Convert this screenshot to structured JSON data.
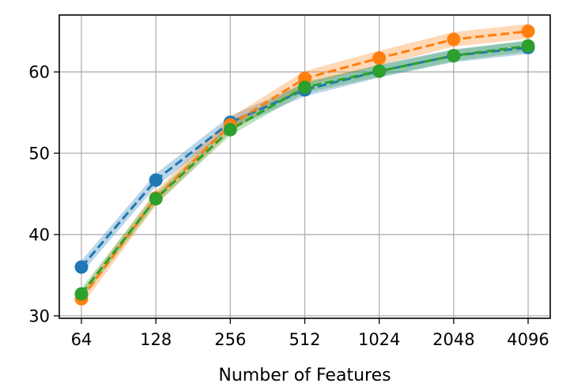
{
  "chart_data": {
    "type": "line",
    "title": "",
    "xlabel": "Number of Features",
    "ylabel": "",
    "x": [
      "64",
      "128",
      "256",
      "512",
      "1024",
      "2048",
      "4096"
    ],
    "ylim": [
      29.7,
      67
    ],
    "yticks": [
      30,
      40,
      50,
      60
    ],
    "grid": true,
    "legend": "none",
    "series": [
      {
        "color": "#1f77b4",
        "values": [
          36.0,
          46.7,
          53.8,
          57.8,
          60.1,
          62.0,
          63.0
        ],
        "band": 0.8
      },
      {
        "color": "#ff7f0e",
        "values": [
          32.1,
          44.5,
          53.5,
          59.2,
          61.7,
          64.0,
          65.0
        ],
        "band": 0.9
      },
      {
        "color": "#2ca02c",
        "values": [
          32.7,
          44.4,
          52.9,
          58.1,
          60.1,
          62.0,
          63.2
        ],
        "band": 0.7
      }
    ]
  }
}
